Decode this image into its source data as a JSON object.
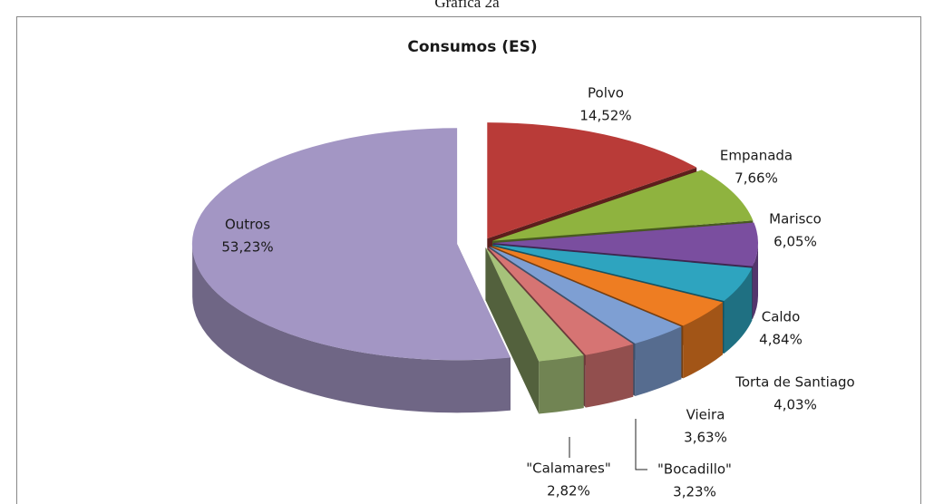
{
  "page_title": "Gráfica 2a",
  "chart_data": {
    "type": "pie3d",
    "title": "Consumos (ES)",
    "categories": [
      "Polvo",
      "Empanada",
      "Marisco",
      "Caldo",
      "Torta de Santiago",
      "Vieira",
      "\"Bocadillo\"",
      "\"Calamares\"",
      "Outros"
    ],
    "values": [
      14.52,
      7.66,
      6.05,
      4.84,
      4.03,
      3.63,
      3.23,
      2.82,
      53.23
    ],
    "value_labels": [
      "14,52%",
      "7,66%",
      "6,05%",
      "4,84%",
      "4,03%",
      "3,63%",
      "3,23%",
      "2,82%",
      "53,23%"
    ],
    "colors": [
      "#b93b38",
      "#8fb33f",
      "#7a4e9f",
      "#2ea4bf",
      "#ee7d22",
      "#7e9fd3",
      "#d67473",
      "#a6c27a",
      "#a396c4"
    ]
  }
}
